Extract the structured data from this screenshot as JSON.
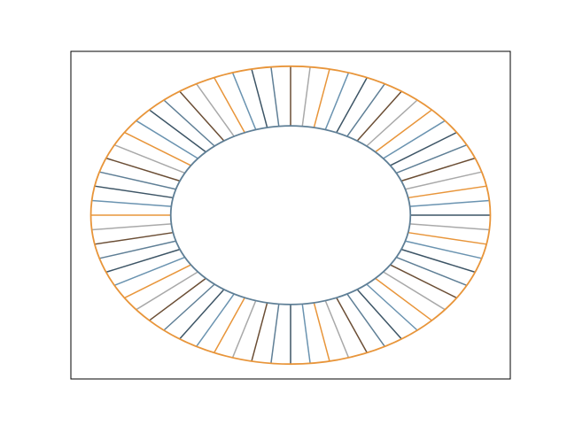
{
  "chart_data": {
    "type": "line",
    "title": "",
    "xlabel": "",
    "ylabel": "",
    "axes_ticks_visible": false,
    "grid": false,
    "xlim": [
      -1.1,
      1.1
    ],
    "ylim": [
      -1.1,
      1.1
    ],
    "inner_ring": {
      "radius": 0.6,
      "color": "#5f7f96"
    },
    "outer_ring": {
      "radius": 1.0,
      "color": "#e8953a"
    },
    "spokes": {
      "count": 64,
      "from_radius": 0.6,
      "to_radius": 1.0,
      "color_cycle": [
        "#3d5566",
        "#6a93b0",
        "#e8953a",
        "#a9a9a9",
        "#6b4e35",
        "#5f7f96"
      ]
    }
  }
}
